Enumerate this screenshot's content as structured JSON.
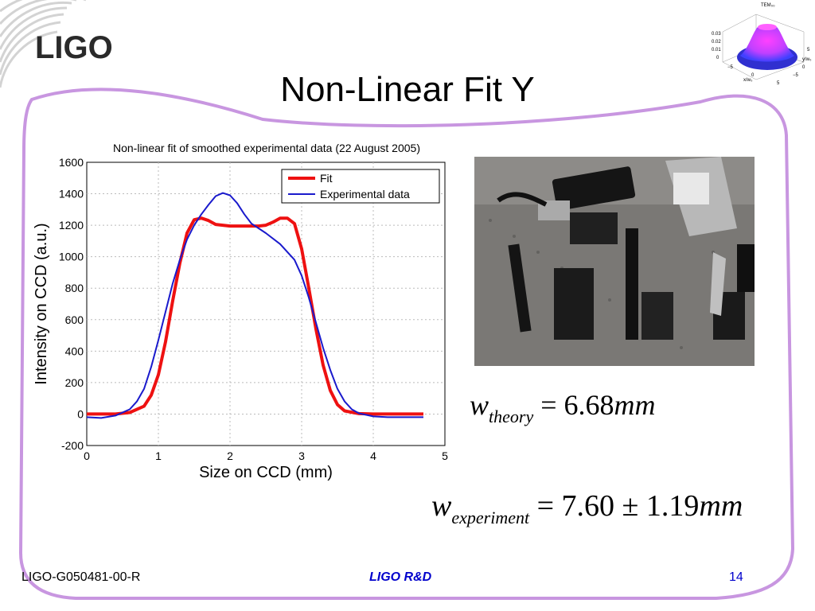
{
  "logo": {
    "text": "LIGO"
  },
  "slide": {
    "title": "Non-Linear Fit Y"
  },
  "inset": {
    "title": "TEM₀₀",
    "z_ticks": [
      "0.03",
      "0.02",
      "0.01",
      "0"
    ],
    "x_ticks": [
      "−5",
      "0",
      "5"
    ],
    "y_ticks": [
      "−5",
      "0",
      "5"
    ],
    "x_label": "x/w₀",
    "y_label": "y/w₀"
  },
  "chart_data": {
    "type": "line",
    "title": "Non-linear fit of smoothed experimental data (22 August 2005)",
    "xlabel": "Size on CCD (mm)",
    "ylabel": "Intensity on CCD (a.u.)",
    "xlim": [
      0,
      5
    ],
    "ylim": [
      -200,
      1600
    ],
    "x_ticks": [
      "0",
      "1",
      "2",
      "3",
      "4",
      "5"
    ],
    "y_ticks": [
      "-200",
      "0",
      "200",
      "400",
      "600",
      "800",
      "1000",
      "1200",
      "1400",
      "1600"
    ],
    "grid": true,
    "legend_position": "top-right",
    "series": [
      {
        "name": "Fit",
        "color": "#ee1111",
        "x": [
          0,
          0.4,
          0.6,
          0.8,
          0.9,
          1.0,
          1.1,
          1.2,
          1.3,
          1.4,
          1.5,
          1.6,
          1.7,
          1.8,
          2.0,
          2.2,
          2.4,
          2.5,
          2.6,
          2.7,
          2.8,
          2.9,
          3.0,
          3.1,
          3.2,
          3.3,
          3.4,
          3.5,
          3.6,
          3.8,
          4.0,
          4.7
        ],
        "y": [
          0,
          0,
          10,
          50,
          120,
          250,
          460,
          720,
          960,
          1150,
          1235,
          1245,
          1230,
          1205,
          1195,
          1195,
          1195,
          1200,
          1220,
          1245,
          1245,
          1210,
          1050,
          800,
          540,
          310,
          150,
          60,
          20,
          3,
          0,
          0
        ]
      },
      {
        "name": "Experimental data",
        "color": "#1a1acc",
        "x": [
          0,
          0.2,
          0.4,
          0.6,
          0.7,
          0.8,
          0.9,
          1.0,
          1.1,
          1.2,
          1.3,
          1.4,
          1.5,
          1.6,
          1.7,
          1.8,
          1.9,
          2.0,
          2.1,
          2.2,
          2.3,
          2.5,
          2.7,
          2.9,
          3.0,
          3.1,
          3.2,
          3.3,
          3.4,
          3.5,
          3.6,
          3.7,
          3.8,
          4.0,
          4.2,
          4.7
        ],
        "y": [
          -20,
          -25,
          -10,
          30,
          80,
          160,
          300,
          470,
          650,
          830,
          980,
          1110,
          1200,
          1270,
          1330,
          1385,
          1405,
          1390,
          1340,
          1270,
          1210,
          1150,
          1080,
          980,
          880,
          740,
          580,
          420,
          280,
          160,
          80,
          30,
          5,
          -15,
          -20,
          -20
        ]
      }
    ]
  },
  "equations": {
    "theory": {
      "symbol": "w",
      "subscript": "theory",
      "rhs": "= 6.68",
      "unit": "mm"
    },
    "experiment": {
      "symbol": "w",
      "subscript": "experiment",
      "rhs": "= 7.60 ± 1.19",
      "unit": "mm"
    }
  },
  "footer": {
    "doc_id": "LIGO-G050481-00-R",
    "center": "LIGO R&D",
    "page": "14"
  },
  "colors": {
    "frame": "#c896e0",
    "footer_accent": "#0000cc"
  }
}
